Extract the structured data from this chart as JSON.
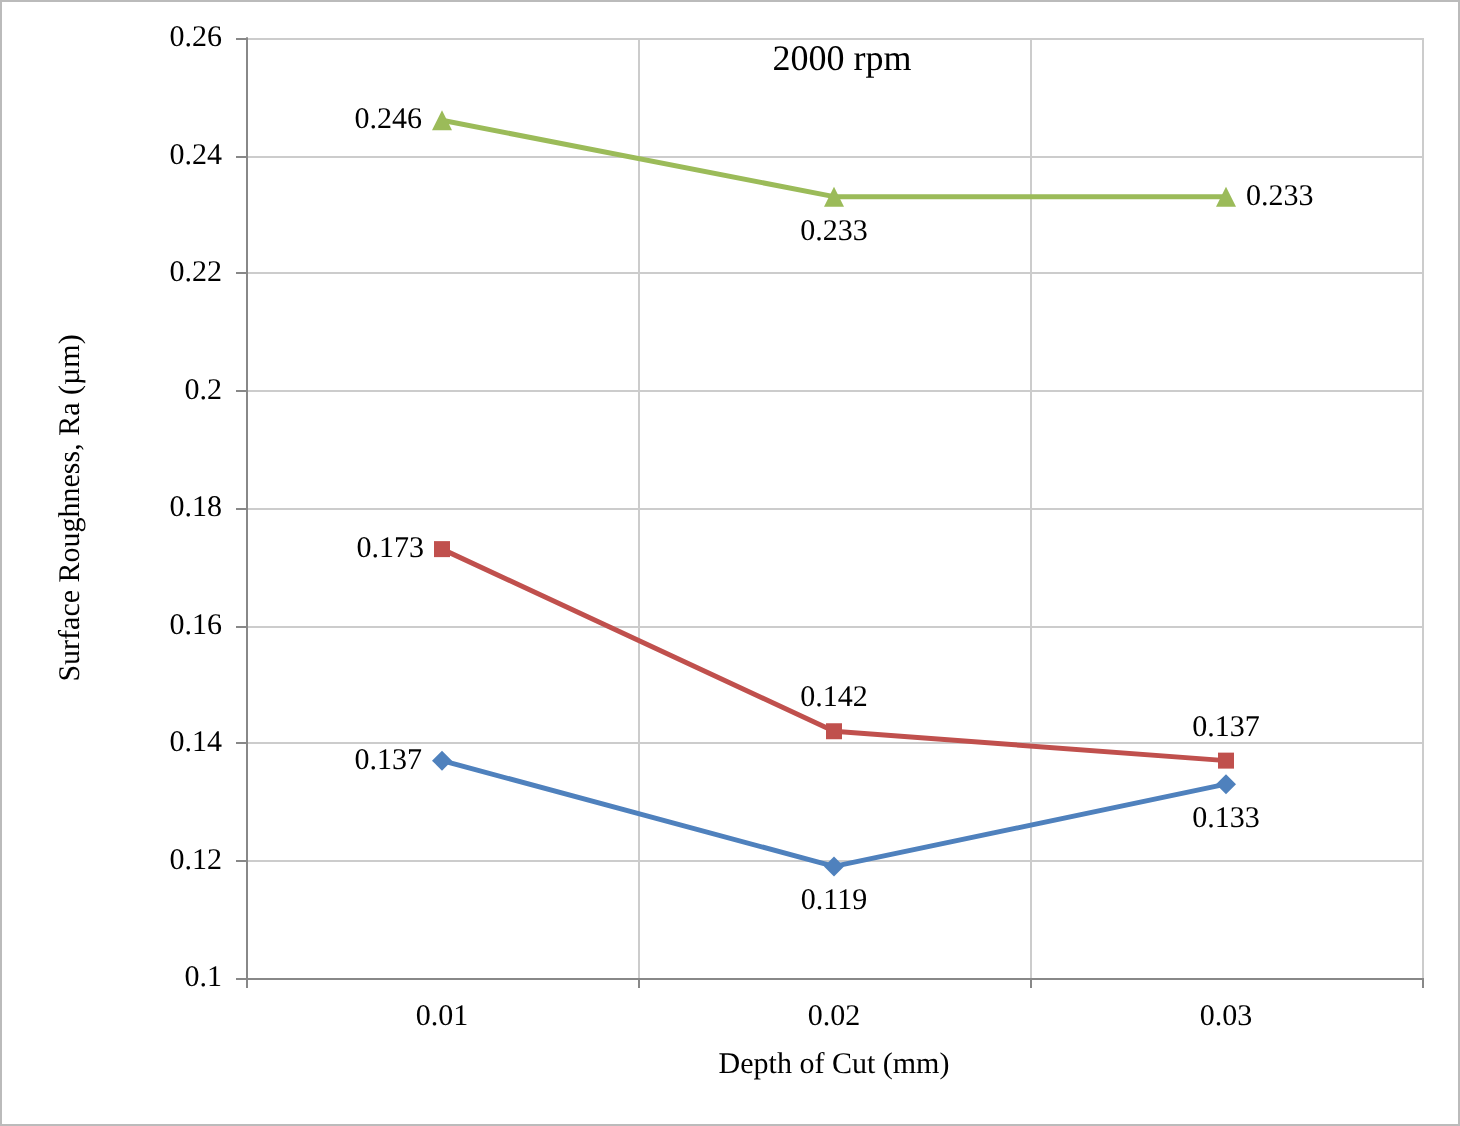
{
  "chart_data": {
    "type": "line",
    "title": "2000 rpm",
    "xlabel": "Depth of Cut (mm)",
    "ylabel": "Surface Roughness, Ra (µm)",
    "categories": [
      "0.01",
      "0.02",
      "0.03"
    ],
    "series": [
      {
        "color": "#4f81bd",
        "marker": "diamond",
        "values": [
          0.137,
          0.119,
          0.133
        ]
      },
      {
        "color": "#c0504d",
        "marker": "square",
        "values": [
          0.173,
          0.142,
          0.137
        ]
      },
      {
        "color": "#9bbb59",
        "marker": "triangle",
        "values": [
          0.246,
          0.233,
          0.233
        ]
      }
    ],
    "ylim": [
      0.1,
      0.26
    ],
    "yticks": [
      0.1,
      0.12,
      0.14,
      0.16,
      0.18,
      0.2,
      0.22,
      0.24,
      0.26
    ],
    "grid": true,
    "data_labels": true
  }
}
